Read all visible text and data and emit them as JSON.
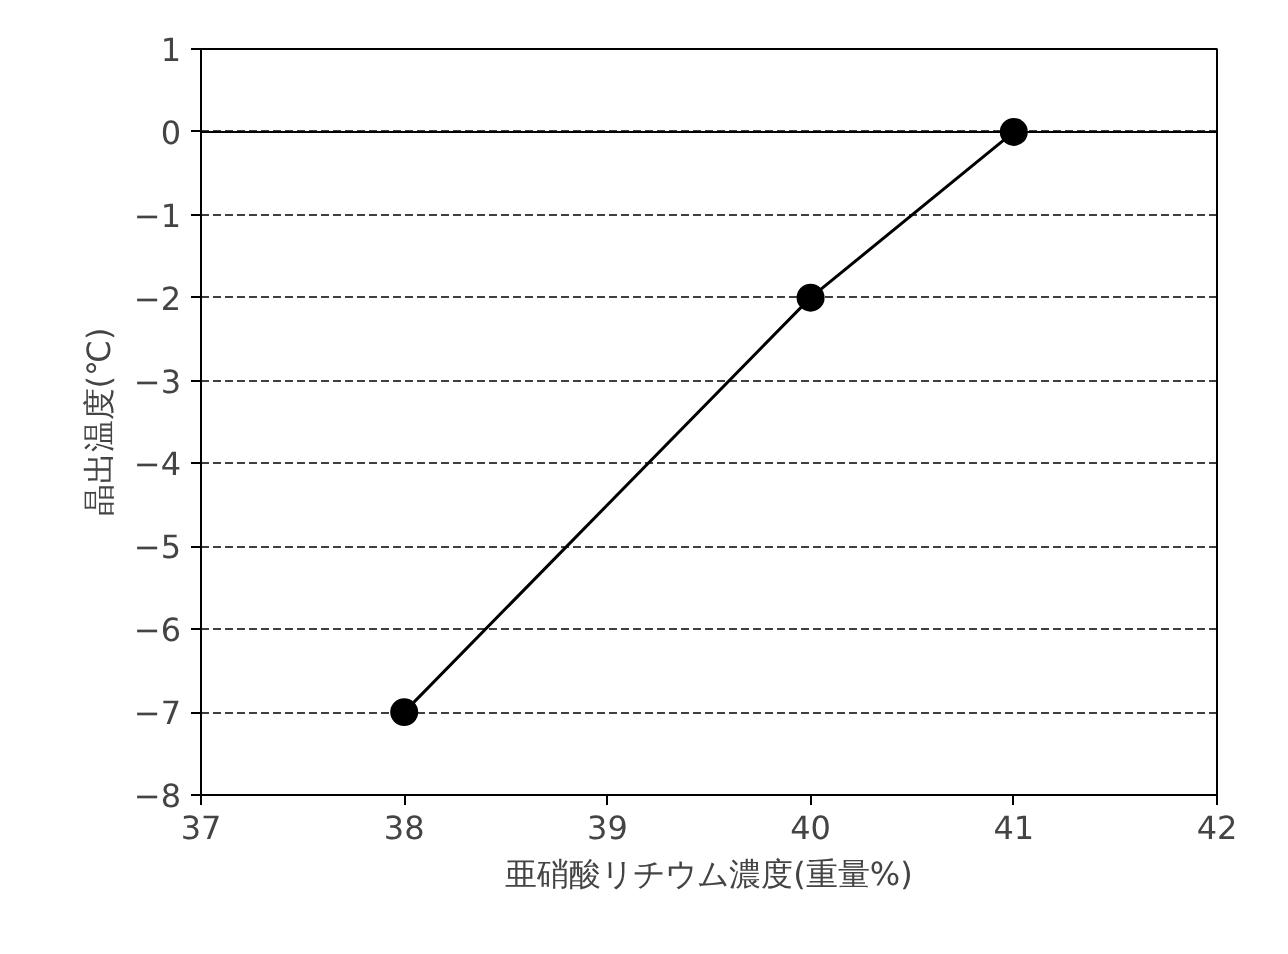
{
  "chart_data": {
    "type": "line",
    "xlabel": "亜硝酸リチウム濃度(重量%)",
    "ylabel": "晶出温度(℃)",
    "x": [
      38,
      40,
      41
    ],
    "series": [
      {
        "color": "#000000",
        "values": [
          -7,
          -2,
          0
        ]
      }
    ],
    "xlim": [
      37,
      42
    ],
    "xticks": [
      37,
      38,
      39,
      40,
      41,
      42
    ],
    "ylim": [
      -8,
      1
    ],
    "yticks": [
      -8,
      -7,
      -6,
      -5,
      -4,
      -3,
      -2,
      -1,
      0,
      1
    ],
    "grid": "y",
    "marker": "circle",
    "line_style": "solid",
    "ref_lines": [
      {
        "axis": "y",
        "value": 0,
        "color": "#000000",
        "line_style": "solid"
      }
    ]
  }
}
